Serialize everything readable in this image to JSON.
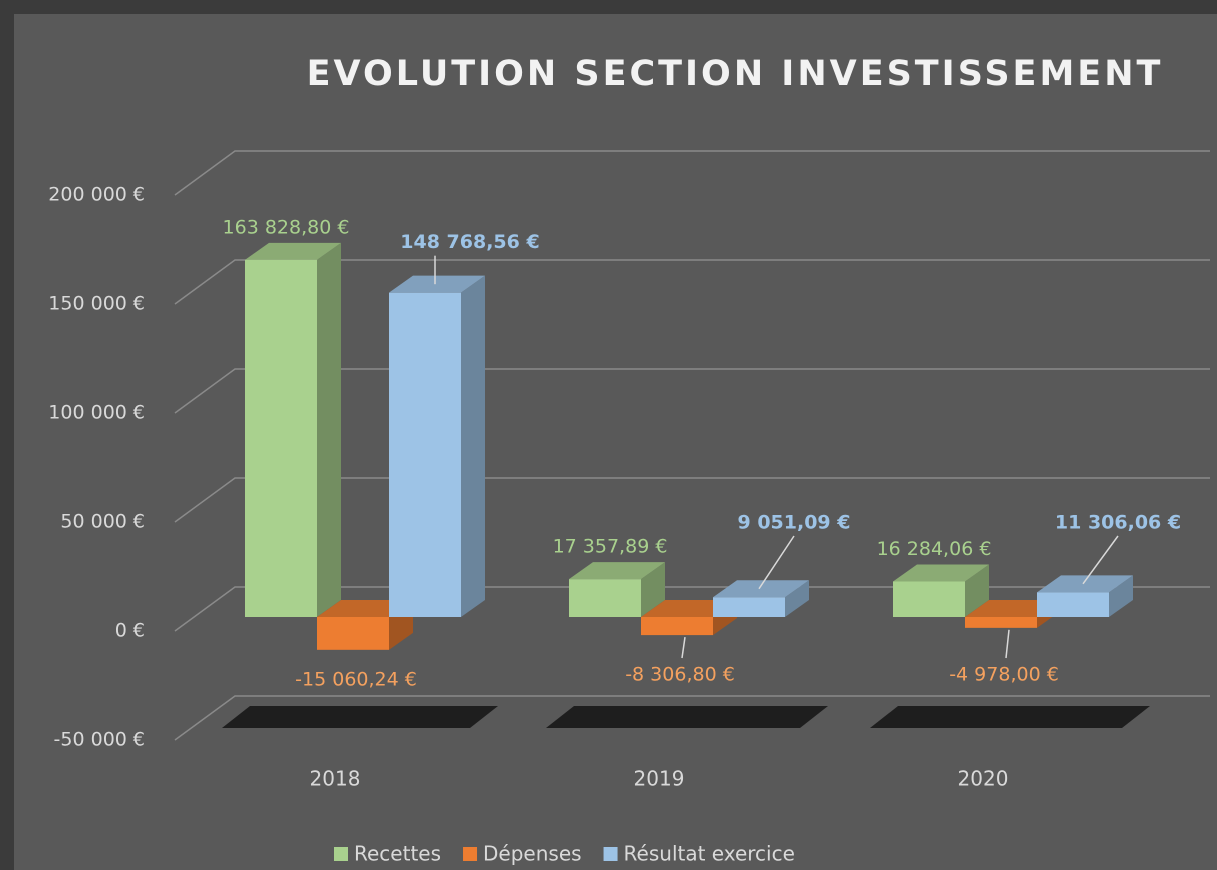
{
  "chart_data": {
    "type": "bar3d",
    "title": "EVOLUTION SECTION INVESTISSEMENT",
    "categories": [
      "2018",
      "2019",
      "2020"
    ],
    "series": [
      {
        "name": "Recettes",
        "color": "#a9d18e",
        "values": [
          163828.8,
          17357.89,
          16284.06
        ],
        "value_labels": [
          "163 828,80 €",
          "17 357,89 €",
          "16 284,06 €"
        ]
      },
      {
        "name": "Dépenses",
        "color": "#ed7d31",
        "values": [
          -15060.24,
          -8306.8,
          -4978.0
        ],
        "value_labels": [
          "-15 060,24 €",
          "-8 306,80 €",
          "-4 978,00 €"
        ]
      },
      {
        "name": "Résultat exercice",
        "color": "#9dc3e6",
        "values": [
          148768.56,
          9051.09,
          11306.06
        ],
        "value_labels": [
          "148 768,56 €",
          "9 051,09 €",
          "11 306,06 €"
        ]
      }
    ],
    "ylim": [
      -50000,
      200000
    ],
    "yticks": [
      {
        "value": -50000,
        "label": "-50 000 €"
      },
      {
        "value": 0,
        "label": "0 €"
      },
      {
        "value": 50000,
        "label": "50 000 €"
      },
      {
        "value": 100000,
        "label": "100 000 €"
      },
      {
        "value": 150000,
        "label": "150 000 €"
      },
      {
        "value": 200000,
        "label": "200 000 €"
      }
    ],
    "grid": true,
    "legend": "bottom"
  }
}
